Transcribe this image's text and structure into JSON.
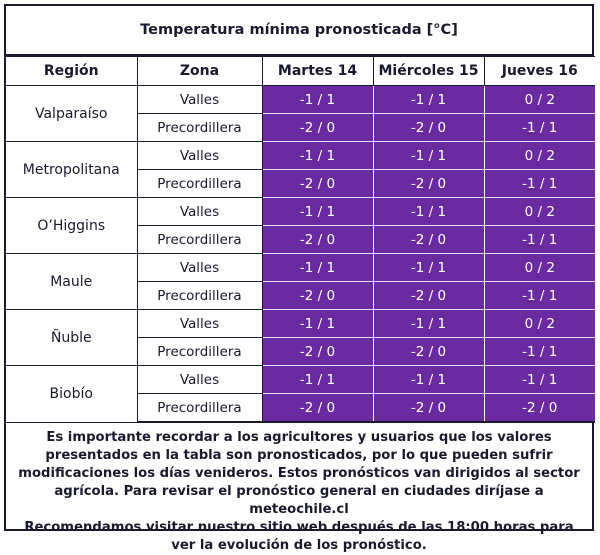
{
  "title": "Temperatura mínima pronosticada [°C]",
  "headers": [
    "Región",
    "Zona",
    "Martes 14",
    "Miércoles 15",
    "Jueves 16"
  ],
  "regions": [
    {
      "name": "Valparaíso",
      "rows": [
        {
          "zona": "Valles",
          "values": [
            "-1 / 1",
            "-1 / 1",
            "0 / 2"
          ]
        },
        {
          "zona": "Precordillera",
          "values": [
            "-2 / 0",
            "-2 / 0",
            "-1 / 1"
          ]
        }
      ]
    },
    {
      "name": "Metropolitana",
      "rows": [
        {
          "zona": "Valles",
          "values": [
            "-1 / 1",
            "-1 / 1",
            "0 / 2"
          ]
        },
        {
          "zona": "Precordillera",
          "values": [
            "-2 / 0",
            "-2 / 0",
            "-1 / 1"
          ]
        }
      ]
    },
    {
      "name": "O’Higgins",
      "rows": [
        {
          "zona": "Valles",
          "values": [
            "-1 / 1",
            "-1 / 1",
            "0 / 2"
          ]
        },
        {
          "zona": "Precordillera",
          "values": [
            "-2 / 0",
            "-2 / 0",
            "-1 / 1"
          ]
        }
      ]
    },
    {
      "name": "Maule",
      "rows": [
        {
          "zona": "Valles",
          "values": [
            "-1 / 1",
            "-1 / 1",
            "0 / 2"
          ]
        },
        {
          "zona": "Precordillera",
          "values": [
            "-2 / 0",
            "-2 / 0",
            "-1 / 1"
          ]
        }
      ]
    },
    {
      "name": "Ñuble",
      "rows": [
        {
          "zona": "Valles",
          "values": [
            "-1 / 1",
            "-1 / 1",
            "0 / 2"
          ]
        },
        {
          "zona": "Precordillera",
          "values": [
            "-2 / 0",
            "-2 / 0",
            "-1 / 1"
          ]
        }
      ]
    },
    {
      "name": "Biobío",
      "rows": [
        {
          "zona": "Valles",
          "values": [
            "-1 / 1",
            "-1 / 1",
            "-1 / 1"
          ]
        },
        {
          "zona": "Precordillera",
          "values": [
            "-2 / 0",
            "-2 / 0",
            "-2 / 0"
          ]
        }
      ]
    }
  ],
  "note": {
    "paragraph1": "Es importante recordar a los agricultores y usuarios que los valores presentados en la tabla son pronosticados, por lo que pueden sufrir modificaciones los días venideros. Estos pronósticos van dirigidos al sector agrícola. Para revisar el pronóstico general en ciudades diríjase a meteochile.cl",
    "paragraph2": "Recomendamos visitar nuestro sitio web después de las 18:00 horas para ver la evolución de los pronóstico."
  },
  "colors": {
    "value_cell": "#6a2aa0",
    "border": "#1a1a2e"
  }
}
